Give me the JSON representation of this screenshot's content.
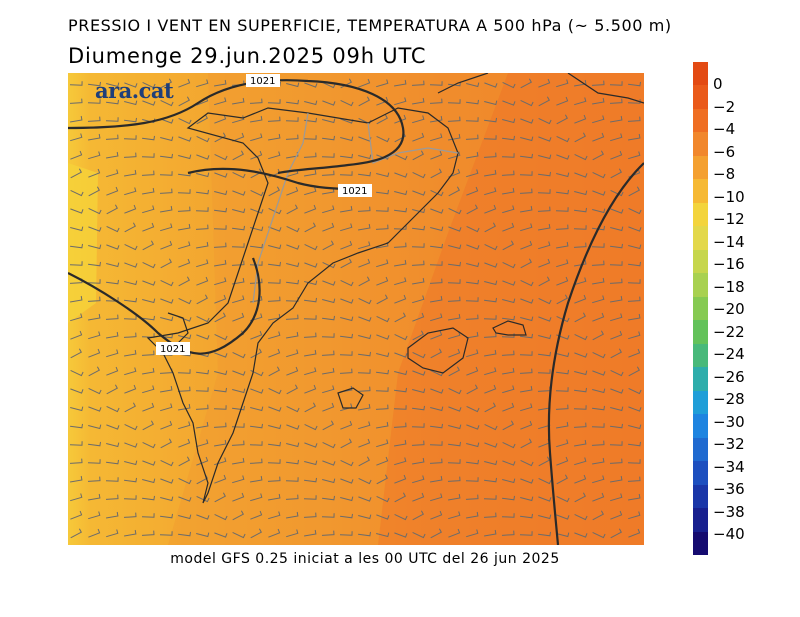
{
  "header": {
    "title": "PRESSIO I VENT EN SUPERFICIE, TEMPERATURA A 500 hPa (~ 5.500 m)",
    "date_line": "Diumenge  29.jun.2025 09h UTC"
  },
  "brand": {
    "logo_text": "ara.cat"
  },
  "footer": {
    "model_note": "model GFS 0.25 iniciat a les 00 UTC del 26 jun 2025"
  },
  "map": {
    "isobar_labels": [
      "1021",
      "1021",
      "1021"
    ],
    "temperature_field": "orange/yellow (approx. -6 to -10 °C), warmest to the east"
  },
  "colorbar": {
    "labels": [
      "0",
      "−2",
      "−4",
      "−6",
      "−8",
      "−10",
      "−12",
      "−14",
      "−16",
      "−18",
      "−20",
      "−22",
      "−24",
      "−26",
      "−28",
      "−30",
      "−32",
      "−34",
      "−36",
      "−38",
      "−40"
    ],
    "colors": [
      "#e34a13",
      "#ea5a1a",
      "#ef6e22",
      "#f1872c",
      "#f4a030",
      "#f6b934",
      "#f3d43c",
      "#e3d84a",
      "#c6d64c",
      "#a8d150",
      "#86ca52",
      "#63c25a",
      "#48b97a",
      "#2eadab",
      "#1f9ed8",
      "#1e84e0",
      "#1f6ad0",
      "#1d4fbf",
      "#1a36a8",
      "#18208f",
      "#150b70"
    ]
  }
}
